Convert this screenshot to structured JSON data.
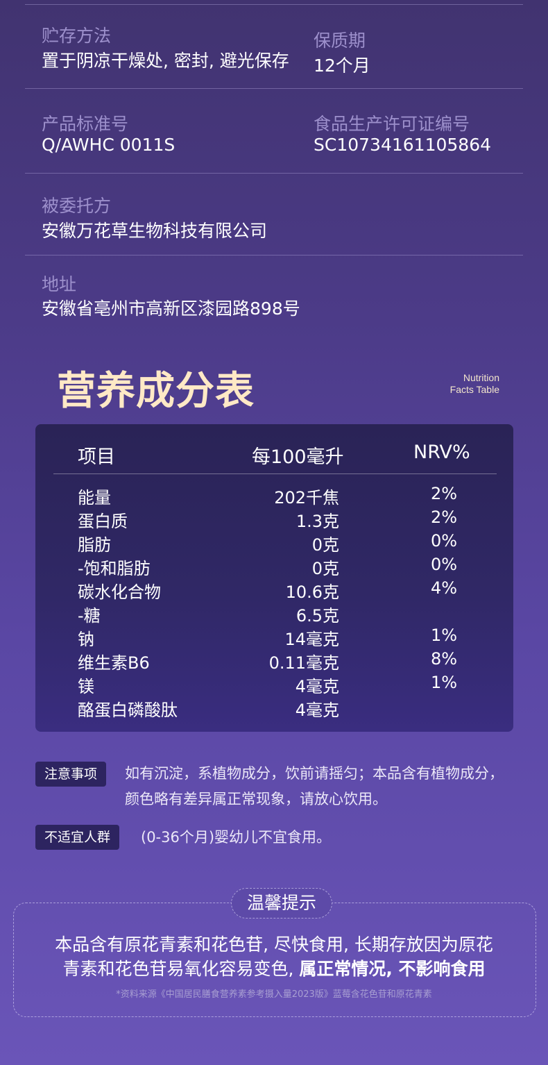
{
  "info": {
    "storage_label": "贮存方法",
    "storage_value": "置于阴凉干燥处, 密封, 避光保存",
    "shelf_label": "保质期",
    "shelf_value": "12个月",
    "standard_label": "产品标准号",
    "standard_value": "Q/AWHC 0011S",
    "license_label": "食品生产许可证编号",
    "license_value": "SC10734161105864",
    "entrusted_label": "被委托方",
    "entrusted_value": "安徽万花草生物科技有限公司",
    "address_label": "地址",
    "address_value": "安徽省亳州市高新区漆园路898号"
  },
  "nutrition": {
    "title": "营养成分表",
    "subtitle_line1": "Nutrition",
    "subtitle_line2": "Facts Table",
    "headers": [
      "项目",
      "每100毫升",
      "NRV%"
    ],
    "rows": [
      {
        "item": "能量",
        "amount": "202千焦",
        "nrv": "2%"
      },
      {
        "item": "蛋白质",
        "amount": "1.3克",
        "nrv": "2%"
      },
      {
        "item": "脂肪",
        "amount": "0克",
        "nrv": "0%"
      },
      {
        "item": "-饱和脂肪",
        "amount": "0克",
        "nrv": "0%"
      },
      {
        "item": "碳水化合物",
        "amount": "10.6克",
        "nrv": "4%"
      },
      {
        "item": "-糖",
        "amount": "6.5克",
        "nrv": ""
      },
      {
        "item": "钠",
        "amount": "14毫克",
        "nrv": "1%"
      },
      {
        "item": "维生素B6",
        "amount": "0.11毫克",
        "nrv": "8%"
      },
      {
        "item": "镁",
        "amount": "4毫克",
        "nrv": "1%"
      },
      {
        "item": "酪蛋白磷酸肽",
        "amount": "4毫克",
        "nrv": ""
      }
    ]
  },
  "notes": {
    "caution_tag": "注意事项",
    "caution_line1": "如有沉淀，系植物成分，饮前请摇匀；本品含有植物成分，",
    "caution_line2": "颜色略有差异属正常现象，请放心饮用。",
    "unsuitable_tag": "不适宜人群",
    "unsuitable_text": "(0-36个月)婴幼儿不宜食用。"
  },
  "tip": {
    "title": "温馨提示",
    "line1": "本品含有原花青素和花色苷, 尽快食用, 长期存放因为原花",
    "line2_normal": "青素和花色苷易氧化容易变色, ",
    "line2_bold": "属正常情况, 不影响食用",
    "source": "*资料来源《中国居民膳食营养素参考摄入量2023版》蓝莓含花色苷和原花青素"
  }
}
